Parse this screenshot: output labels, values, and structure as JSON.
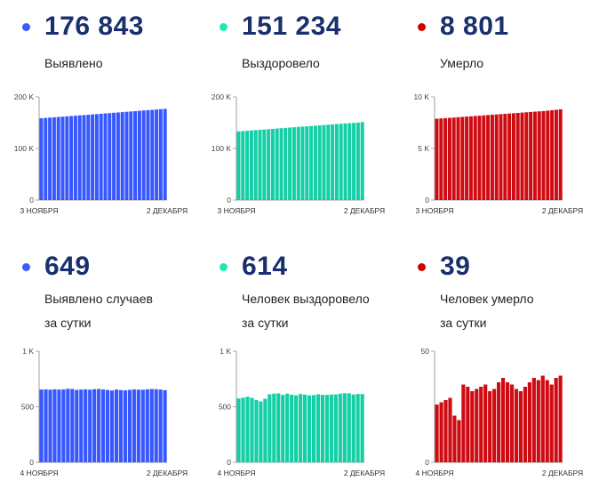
{
  "colors": {
    "blue": "#3757ff",
    "teal": "#14cfa5",
    "red": "#cf0b12",
    "number": "#1a2f6e"
  },
  "panels": [
    {
      "id": "detected",
      "value": "176 843",
      "label1": "Выявлено",
      "label2": "",
      "color": "#3757ff",
      "dot": "#3d5afe"
    },
    {
      "id": "recovered",
      "value": "151 234",
      "label1": "Выздоровело",
      "label2": "",
      "color": "#14cfa5",
      "dot": "#1de9b6"
    },
    {
      "id": "died",
      "value": "8 801",
      "label1": "Умерло",
      "label2": "",
      "color": "#cf0b12",
      "dot": "#d50000"
    },
    {
      "id": "daily-detected",
      "value": "649",
      "label1": "Выявлено случаев",
      "label2": "за сутки",
      "color": "#3757ff",
      "dot": "#3d5afe"
    },
    {
      "id": "daily-recovered",
      "value": "614",
      "label1": "Человек выздоровело",
      "label2": "за сутки",
      "color": "#14cfa5",
      "dot": "#1de9b6"
    },
    {
      "id": "daily-died",
      "value": "39",
      "label1": "Человек умерло",
      "label2": "за сутки",
      "color": "#cf0b12",
      "dot": "#d50000"
    }
  ],
  "chart_data": [
    {
      "type": "bar",
      "id": "detected",
      "x_start": "3 ноября",
      "x_end": "2 декабря",
      "yticks": [
        "0",
        "100 K",
        "200 K"
      ],
      "ylim": [
        0,
        200000
      ],
      "values": [
        158600,
        159300,
        159900,
        160500,
        161100,
        161700,
        162300,
        162900,
        163500,
        164200,
        164800,
        165400,
        166100,
        166700,
        167300,
        168000,
        168600,
        169300,
        169900,
        170500,
        171200,
        171800,
        172400,
        173100,
        173700,
        174300,
        174900,
        175600,
        176200,
        176843
      ]
    },
    {
      "type": "bar",
      "id": "recovered",
      "x_start": "3 ноября",
      "x_end": "2 декабря",
      "yticks": [
        "0",
        "100 K",
        "200 K"
      ],
      "ylim": [
        0,
        200000
      ],
      "values": [
        133100,
        133700,
        134300,
        135000,
        135600,
        136200,
        136800,
        137400,
        138000,
        138700,
        139300,
        139900,
        140500,
        141200,
        141800,
        142400,
        143000,
        143600,
        144300,
        144900,
        145500,
        146100,
        146700,
        147300,
        147900,
        148500,
        149100,
        149700,
        150300,
        151234
      ]
    },
    {
      "type": "bar",
      "id": "died",
      "x_start": "3 ноября",
      "x_end": "2 декабря",
      "yticks": [
        "0",
        "5 K",
        "10 K"
      ],
      "ylim": [
        0,
        10000
      ],
      "values": [
        7880,
        7910,
        7940,
        7970,
        8000,
        8030,
        8060,
        8090,
        8120,
        8150,
        8180,
        8210,
        8240,
        8270,
        8300,
        8330,
        8360,
        8390,
        8420,
        8450,
        8480,
        8510,
        8540,
        8570,
        8600,
        8630,
        8670,
        8710,
        8750,
        8801
      ]
    },
    {
      "type": "bar",
      "id": "daily-detected",
      "x_start": "4 ноября",
      "x_end": "2 декабря",
      "yticks": [
        "0",
        "500",
        "1 K"
      ],
      "ylim": [
        0,
        1000
      ],
      "values": [
        655,
        656,
        654,
        657,
        655,
        656,
        662,
        660,
        652,
        655,
        657,
        654,
        658,
        660,
        656,
        651,
        646,
        655,
        650,
        648,
        652,
        656,
        654,
        653,
        657,
        660,
        658,
        655,
        649
      ]
    },
    {
      "type": "bar",
      "id": "daily-recovered",
      "x_start": "4 ноября",
      "x_end": "2 декабря",
      "yticks": [
        "0",
        "500",
        "1 K"
      ],
      "ylim": [
        0,
        1000
      ],
      "values": [
        575,
        582,
        590,
        580,
        560,
        548,
        572,
        612,
        618,
        620,
        607,
        618,
        608,
        603,
        615,
        609,
        602,
        605,
        612,
        608,
        607,
        610,
        611,
        618,
        622,
        621,
        610,
        615,
        614
      ]
    },
    {
      "type": "bar",
      "id": "daily-died",
      "x_start": "4 ноября",
      "x_end": "2 декабря",
      "yticks": [
        "0",
        "50"
      ],
      "ylim": [
        0,
        50
      ],
      "values": [
        26,
        27,
        28,
        29,
        21,
        19,
        35,
        34,
        32,
        33,
        34,
        35,
        32,
        33,
        36,
        38,
        36,
        35,
        33,
        32,
        34,
        36,
        38,
        37,
        39,
        37,
        35,
        38,
        39
      ]
    }
  ]
}
